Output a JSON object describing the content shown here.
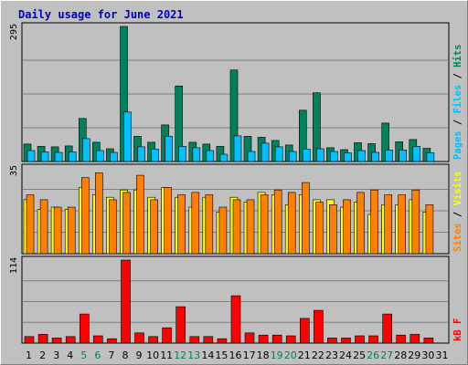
{
  "chart_data": {
    "type": "bar",
    "title": "Daily usage for June 2021",
    "days": [
      "1",
      "2",
      "3",
      "4",
      "5",
      "6",
      "7",
      "8",
      "9",
      "10",
      "11",
      "12",
      "13",
      "14",
      "15",
      "16",
      "17",
      "18",
      "19",
      "20",
      "21",
      "22",
      "23",
      "24",
      "25",
      "26",
      "27",
      "28",
      "29",
      "30",
      "31"
    ],
    "weekend_days": [
      "5",
      "6",
      "12",
      "13",
      "19",
      "20",
      "26",
      "27"
    ],
    "panels": [
      {
        "id": "hits-files-pages",
        "scale_label": "295",
        "ymax": 295,
        "ylabel_parts": [
          "Pages",
          " / ",
          "Files",
          " / ",
          "Hits"
        ],
        "series": [
          {
            "name": "Hits",
            "color": "#00805c",
            "values": [
              38,
              33,
              32,
              34,
              94,
              42,
              28,
              295,
              55,
              42,
              80,
              165,
              42,
              38,
              33,
              200,
              55,
              53,
              46,
              36,
              112,
              150,
              30,
              26,
              41,
              39,
              84,
              43,
              48,
              29,
              0
            ]
          },
          {
            "name": "Files",
            "color": "#00c0ff",
            "values": [
              24,
              21,
              20,
              21,
              50,
              24,
              20,
              108,
              32,
              27,
              55,
              33,
              30,
              24,
              16,
              56,
              22,
              40,
              32,
              22,
              27,
              28,
              22,
              19,
              24,
              20,
              25,
              25,
              33,
              19,
              0
            ]
          },
          {
            "name": "Pages",
            "color": "#00c0ff",
            "values": [
              0,
              0,
              0,
              0,
              0,
              0,
              0,
              0,
              0,
              0,
              0,
              0,
              0,
              0,
              0,
              0,
              0,
              0,
              0,
              0,
              0,
              0,
              0,
              0,
              0,
              0,
              0,
              0,
              0,
              0,
              0
            ]
          }
        ]
      },
      {
        "id": "visits-sites",
        "scale_label": "35",
        "ymax": 35,
        "ylabel_parts": [
          "Sites",
          " / ",
          "Visits"
        ],
        "series": [
          {
            "name": "Visits",
            "color": "#ffff00",
            "values": [
              22,
              18,
              19,
              18,
              27,
              24,
              23,
              26,
              26,
              23,
              27,
              23,
              19,
              23,
              17,
              23,
              21,
              25,
              24,
              20,
              24,
              22,
              22,
              19,
              21,
              16,
              20,
              20,
              22,
              17,
              0
            ]
          },
          {
            "name": "Sites",
            "color": "#ff8000",
            "values": [
              24,
              22,
              19,
              19,
              31,
              33,
              22,
              25,
              32,
              22,
              27,
              24,
              25,
              24,
              19,
              22,
              22,
              24,
              26,
              25,
              29,
              21,
              20,
              22,
              25,
              26,
              24,
              24,
              26,
              20,
              0
            ]
          }
        ]
      },
      {
        "id": "kbytes",
        "scale_label": "114",
        "ymax": 114,
        "ylabel_parts": [
          "kB F"
        ],
        "series": [
          {
            "name": "kB F",
            "color": "#ff0000",
            "values": [
              9,
              12,
              7,
              9,
              40,
              10,
              6,
              114,
              14,
              9,
              21,
              50,
              9,
              9,
              6,
              65,
              14,
              11,
              11,
              10,
              34,
              45,
              7,
              7,
              10,
              10,
              40,
              11,
              12,
              7,
              0
            ]
          }
        ]
      }
    ],
    "colors": {
      "frame_bg": "#c0c0c0",
      "plot_bg": "#c0c0c0",
      "title": "#0000c0",
      "gridline": "#808080",
      "axis_text": "#000000",
      "weekend_text": "#00805c",
      "outline": "#000000"
    }
  }
}
